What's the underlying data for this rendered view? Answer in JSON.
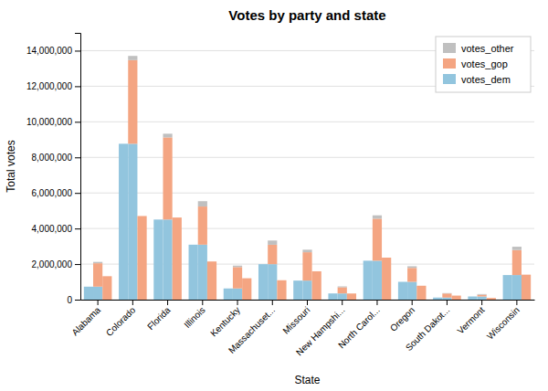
{
  "chart_data": {
    "type": "bar",
    "title": "Votes by party and state",
    "xlabel": "State",
    "ylabel": "Total votes",
    "categories": [
      "Alabama",
      "Colorado",
      "Florida",
      "Illinois",
      "Kentucky",
      "Massachuset...",
      "Missouri",
      "New Hampshi...",
      "North Carol...",
      "Oregon",
      "South Dakot...",
      "Vermont",
      "Wisconsin"
    ],
    "series": [
      {
        "name": "votes_dem",
        "color": "#92c5de",
        "values": [
          729547,
          8764944,
          4504975,
          3090729,
          628854,
          1995196,
          1071068,
          348526,
          2189316,
          1002106,
          117458,
          178573,
          1382536
        ]
      },
      {
        "name": "votes_gop",
        "color": "#f4a582",
        "values": [
          1318255,
          4702585,
          4617886,
          2146015,
          1202971,
          1090893,
          1594511,
          345790,
          2362631,
          782403,
          227721,
          95369,
          1405284
        ]
      },
      {
        "name": "votes_other",
        "color": "#c0c0c0",
        "values": [
          75570,
          238105,
          207043,
          299680,
          82493,
          238957,
          143026,
          49980,
          189617,
          94375,
          24914,
          41125,
          188330
        ]
      }
    ],
    "stacked": true,
    "ylim": [
      0,
      15000000
    ],
    "yticks": [
      0,
      {
        "value": 2000000,
        "label": "2,000,000"
      },
      {
        "value": 4000000,
        "label": "4,000,000"
      },
      {
        "value": 6000000,
        "label": "6,000,000"
      },
      {
        "value": 8000000,
        "label": "8,000,000"
      },
      {
        "value": 10000000,
        "label": "10,000,000"
      },
      {
        "value": 12000000,
        "label": "12,000,000"
      },
      {
        "value": 14000000,
        "label": "14,000,000"
      }
    ],
    "grid": true,
    "legend": "upper right"
  }
}
